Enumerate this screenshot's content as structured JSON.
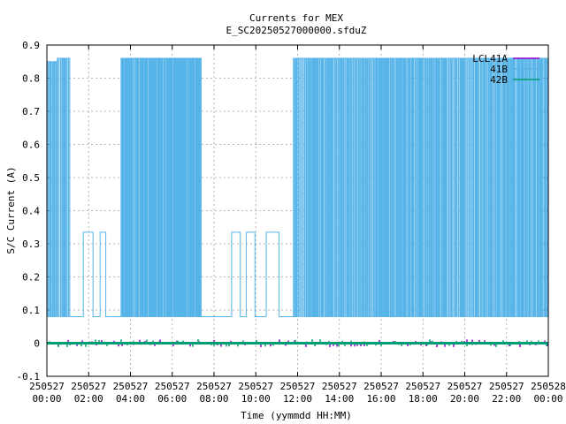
{
  "chart_data": {
    "type": "line",
    "title": "Currents for MEX",
    "subtitle": "E_SC20250527000000.sfduZ",
    "xlabel": "Time (yymmdd HH:MM)",
    "ylabel": "S/C Current (A)",
    "ylim": [
      -0.1,
      0.9
    ],
    "y_ticks": [
      "-0.1",
      "0",
      "0.1",
      "0.2",
      "0.3",
      "0.4",
      "0.5",
      "0.6",
      "0.7",
      "0.8",
      "0.9"
    ],
    "x_unit": "hours since 250527 00:00",
    "xlim": [
      0,
      24
    ],
    "x_ticks": [
      {
        "date": "250527",
        "time": "00:00"
      },
      {
        "date": "250527",
        "time": "02:00"
      },
      {
        "date": "250527",
        "time": "04:00"
      },
      {
        "date": "250527",
        "time": "06:00"
      },
      {
        "date": "250527",
        "time": "08:00"
      },
      {
        "date": "250527",
        "time": "10:00"
      },
      {
        "date": "250527",
        "time": "12:00"
      },
      {
        "date": "250527",
        "time": "14:00"
      },
      {
        "date": "250527",
        "time": "16:00"
      },
      {
        "date": "250527",
        "time": "18:00"
      },
      {
        "date": "250527",
        "time": "20:00"
      },
      {
        "date": "250527",
        "time": "22:00"
      },
      {
        "date": "250528",
        "time": "00:00"
      }
    ],
    "grid": true,
    "legend_position": "top-right",
    "series": [
      {
        "name": "LCL41A",
        "color": "#9400d3",
        "pattern": "near-zero spikes",
        "values": [
          [
            0,
            0.0
          ],
          [
            24,
            0.0
          ]
        ],
        "min": -0.01,
        "max": 0.01
      },
      {
        "name": "41B",
        "color": "#56b4e9",
        "pattern": "square-wave",
        "segments": [
          {
            "start": 0.0,
            "end": 0.5,
            "low": 0.08,
            "high": 0.85,
            "period": 0.09
          },
          {
            "start": 0.5,
            "end": 1.1,
            "low": 0.08,
            "high": 0.86,
            "period": 0.09
          },
          {
            "start": 1.1,
            "end": 1.7,
            "low": 0.08,
            "high": 0.08,
            "period": 1
          },
          {
            "start": 1.7,
            "end": 2.25,
            "low": 0.08,
            "high": 0.335,
            "period": 0.55
          },
          {
            "start": 2.25,
            "end": 2.55,
            "low": 0.08,
            "high": 0.08,
            "period": 1
          },
          {
            "start": 2.55,
            "end": 3.25,
            "low": 0.08,
            "high": 0.335,
            "period": 0.7
          },
          {
            "start": 3.25,
            "end": 3.55,
            "low": 0.08,
            "high": 0.08,
            "period": 1
          },
          {
            "start": 3.55,
            "end": 4.55,
            "low": 0.08,
            "high": 0.86,
            "period": 0.07
          },
          {
            "start": 4.55,
            "end": 7.4,
            "low": 0.08,
            "high": 0.86,
            "period": 0.07
          },
          {
            "start": 7.4,
            "end": 8.8,
            "low": 0.08,
            "high": 0.08,
            "period": 1
          },
          {
            "start": 8.8,
            "end": 9.3,
            "low": 0.08,
            "high": 0.335,
            "period": 0.5
          },
          {
            "start": 9.3,
            "end": 9.5,
            "low": 0.08,
            "high": 0.08,
            "period": 1
          },
          {
            "start": 9.5,
            "end": 10.0,
            "low": 0.08,
            "high": 0.335,
            "period": 0.5
          },
          {
            "start": 10.0,
            "end": 10.5,
            "low": 0.08,
            "high": 0.08,
            "period": 1
          },
          {
            "start": 10.5,
            "end": 11.4,
            "low": 0.08,
            "high": 0.335,
            "period": 0.9
          },
          {
            "start": 11.4,
            "end": 11.8,
            "low": 0.08,
            "high": 0.08,
            "period": 1
          },
          {
            "start": 11.8,
            "end": 24.0,
            "low": 0.08,
            "high": 0.86,
            "period": 0.08
          }
        ]
      },
      {
        "name": "42B",
        "color": "#009e73",
        "pattern": "near-zero spikes",
        "values": [
          [
            0,
            0.0
          ],
          [
            24,
            0.0
          ]
        ],
        "min": -0.01,
        "max": 0.01
      }
    ]
  }
}
